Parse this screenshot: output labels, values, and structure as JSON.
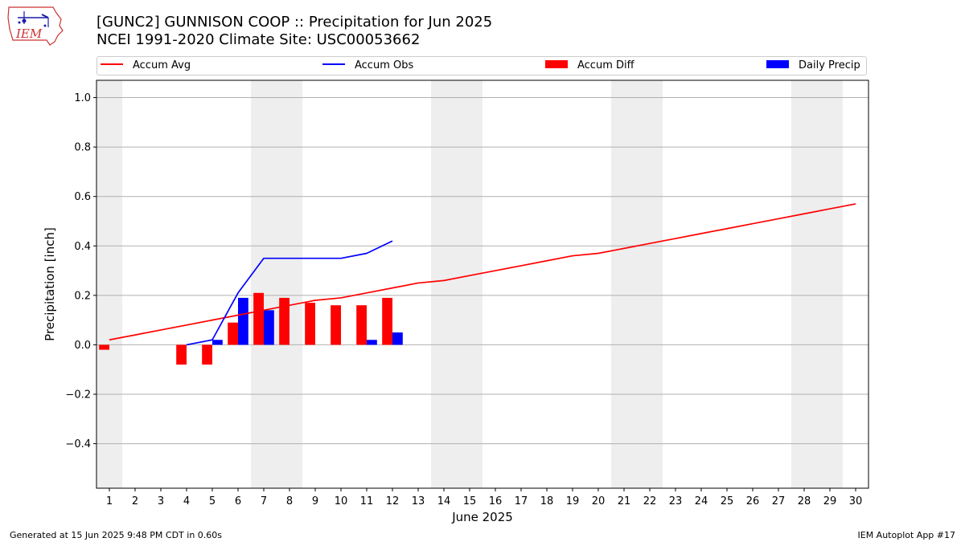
{
  "header": {
    "title_line1": "[GUNC2] GUNNISON COOP :: Precipitation for Jun 2025",
    "title_line2": "NCEI 1991-2020 Climate Site: USC00053662"
  },
  "logo": {
    "text": "IEM",
    "icon": "iowa-state-outline-logo"
  },
  "legend": {
    "placement": "top",
    "items": [
      {
        "label": "Accum Avg",
        "kind": "line",
        "color": "#ff0000"
      },
      {
        "label": "Accum Obs",
        "kind": "line",
        "color": "#0000ff"
      },
      {
        "label": "Accum Diff",
        "kind": "bar",
        "color": "#ff0000"
      },
      {
        "label": "Daily Precip",
        "kind": "bar",
        "color": "#0000ff"
      }
    ]
  },
  "footer": {
    "left": "Generated at 15 Jun 2025 9:48 PM CDT in 0.60s",
    "right": "IEM Autoplot App #17"
  },
  "chart_data": {
    "type": "bar",
    "xlabel": "June 2025",
    "ylabel": "Precipitation [inch]",
    "xlim": [
      0.5,
      30.5
    ],
    "ylim": [
      -0.58,
      1.07
    ],
    "yticks": [
      -0.4,
      -0.2,
      0.0,
      0.2,
      0.4,
      0.6,
      0.8,
      1.0
    ],
    "ytick_labels": [
      "−0.4",
      "−0.2",
      "0.0",
      "0.2",
      "0.4",
      "0.6",
      "0.8",
      "1.0"
    ],
    "xticks": [
      1,
      2,
      3,
      4,
      5,
      6,
      7,
      8,
      9,
      10,
      11,
      12,
      13,
      14,
      15,
      16,
      17,
      18,
      19,
      20,
      21,
      22,
      23,
      24,
      25,
      26,
      27,
      28,
      29,
      30
    ],
    "grid": "horizontal",
    "weekend_shading": [
      [
        0.5,
        1.5
      ],
      [
        6.5,
        8.5
      ],
      [
        13.5,
        15.5
      ],
      [
        20.5,
        22.5
      ],
      [
        27.5,
        29.5
      ]
    ],
    "shading_color": "#eeeeee",
    "series": [
      {
        "name": "Accum Avg",
        "type": "line",
        "color": "#ff0000",
        "x": [
          1,
          2,
          3,
          4,
          5,
          6,
          7,
          8,
          9,
          10,
          11,
          12,
          13,
          14,
          15,
          16,
          17,
          18,
          19,
          20,
          21,
          22,
          23,
          24,
          25,
          26,
          27,
          28,
          29,
          30
        ],
        "values": [
          0.02,
          0.04,
          0.06,
          0.08,
          0.1,
          0.12,
          0.14,
          0.16,
          0.18,
          0.19,
          0.21,
          0.23,
          0.25,
          0.26,
          0.28,
          0.3,
          0.32,
          0.34,
          0.36,
          0.37,
          0.39,
          0.41,
          0.43,
          0.45,
          0.47,
          0.49,
          0.51,
          0.53,
          0.55,
          0.57
        ]
      },
      {
        "name": "Accum Obs",
        "type": "line",
        "color": "#0000ff",
        "x": [
          4,
          5,
          6,
          7,
          8,
          9,
          10,
          11,
          12
        ],
        "values": [
          0.0,
          0.02,
          0.21,
          0.35,
          0.35,
          0.35,
          0.35,
          0.37,
          0.42
        ]
      },
      {
        "name": "Accum Diff",
        "type": "bar",
        "color": "#ff0000",
        "x": [
          1,
          4,
          5,
          6,
          7,
          8,
          9,
          10,
          11,
          12
        ],
        "values": [
          -0.02,
          -0.08,
          -0.08,
          0.09,
          0.21,
          0.19,
          0.17,
          0.16,
          0.16,
          0.19
        ]
      },
      {
        "name": "Daily Precip",
        "type": "bar",
        "color": "#0000ff",
        "x": [
          5,
          6,
          7,
          11,
          12
        ],
        "values": [
          0.02,
          0.19,
          0.14,
          0.02,
          0.05
        ]
      }
    ]
  }
}
